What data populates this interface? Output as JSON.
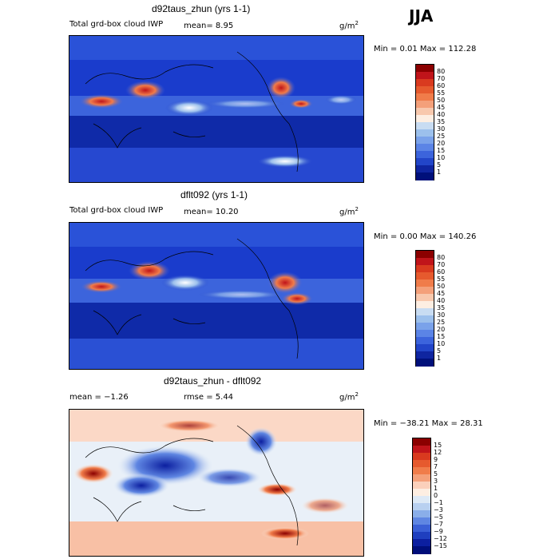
{
  "season": "JJA",
  "panels": [
    {
      "title": "d92taus_zhun (yrs 1-1)",
      "left_text": "Total grd-box cloud IWP",
      "mean_text": "mean=   8.95",
      "units": "g/m",
      "minmax": "Min =    0.01 Max = 112.28",
      "colorbar": [
        "80",
        "70",
        "60",
        "55",
        "50",
        "45",
        "40",
        "35",
        "30",
        "25",
        "20",
        "15",
        "10",
        "5",
        "1"
      ],
      "colors": [
        "#8b0000",
        "#c0141a",
        "#d93a1f",
        "#e65a2e",
        "#f07c4a",
        "#f4a07a",
        "#f8c8ad",
        "#fdeee2",
        "#c8dcf2",
        "#9cc0ec",
        "#7aa2ea",
        "#5b84e6",
        "#3c64dc",
        "#2245c8",
        "#0f25a0",
        "#00107a"
      ]
    },
    {
      "title": "dflt092 (yrs 1-1)",
      "left_text": "Total grd-box cloud IWP",
      "mean_text": "mean=  10.20",
      "units": "g/m",
      "minmax": "Min =    0.00 Max = 140.26",
      "colorbar": [
        "80",
        "70",
        "60",
        "55",
        "50",
        "45",
        "40",
        "35",
        "30",
        "25",
        "20",
        "15",
        "10",
        "5",
        "1"
      ],
      "colors": [
        "#8b0000",
        "#c0141a",
        "#d93a1f",
        "#e65a2e",
        "#f07c4a",
        "#f4a07a",
        "#f8c8ad",
        "#fdeee2",
        "#c8dcf2",
        "#9cc0ec",
        "#7aa2ea",
        "#5b84e6",
        "#3c64dc",
        "#2245c8",
        "#0f25a0",
        "#00107a"
      ]
    },
    {
      "title": "d92taus_zhun - dflt092",
      "left_text": "mean =  −1.26",
      "mean_text": "rmse =   5.44",
      "units": "g/m",
      "minmax": "Min = −38.21 Max =  28.31",
      "colorbar": [
        "15",
        "12",
        "9",
        "7",
        "5",
        "3",
        "1",
        "0",
        "−1",
        "−3",
        "−5",
        "−7",
        "−9",
        "−12",
        "−15"
      ],
      "colors": [
        "#8b0000",
        "#c0141a",
        "#d93a1f",
        "#e65a2e",
        "#f07c4a",
        "#f4a07a",
        "#fbd0bb",
        "#fdeee2",
        "#dde9f6",
        "#b8d0f0",
        "#8aaee9",
        "#5f86e2",
        "#3a5fd6",
        "#1f3fbf",
        "#0c1fa0",
        "#000e7a"
      ]
    }
  ],
  "units_sup": "2"
}
